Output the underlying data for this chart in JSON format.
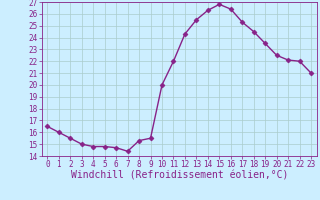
{
  "x": [
    0,
    1,
    2,
    3,
    4,
    5,
    6,
    7,
    8,
    9,
    10,
    11,
    12,
    13,
    14,
    15,
    16,
    17,
    18,
    19,
    20,
    21,
    22,
    23
  ],
  "y": [
    16.5,
    16.0,
    15.5,
    15.0,
    14.8,
    14.8,
    14.7,
    14.4,
    15.3,
    15.5,
    20.0,
    22.0,
    24.3,
    25.5,
    26.3,
    26.8,
    26.4,
    25.3,
    24.5,
    23.5,
    22.5,
    22.1,
    22.0,
    21.0
  ],
  "line_color": "#882288",
  "marker": "D",
  "marker_size": 2.5,
  "bg_color": "#cceeff",
  "grid_color": "#aacccc",
  "xlabel": "Windchill (Refroidissement éolien,°C)",
  "ylim": [
    14,
    27
  ],
  "xlim_min": -0.5,
  "xlim_max": 23.5,
  "yticks": [
    14,
    15,
    16,
    17,
    18,
    19,
    20,
    21,
    22,
    23,
    24,
    25,
    26,
    27
  ],
  "xticks": [
    0,
    1,
    2,
    3,
    4,
    5,
    6,
    7,
    8,
    9,
    10,
    11,
    12,
    13,
    14,
    15,
    16,
    17,
    18,
    19,
    20,
    21,
    22,
    23
  ],
  "tick_color": "#882288",
  "tick_fontsize": 5.5,
  "xlabel_fontsize": 7.0,
  "spine_color": "#882288",
  "linewidth": 1.0
}
